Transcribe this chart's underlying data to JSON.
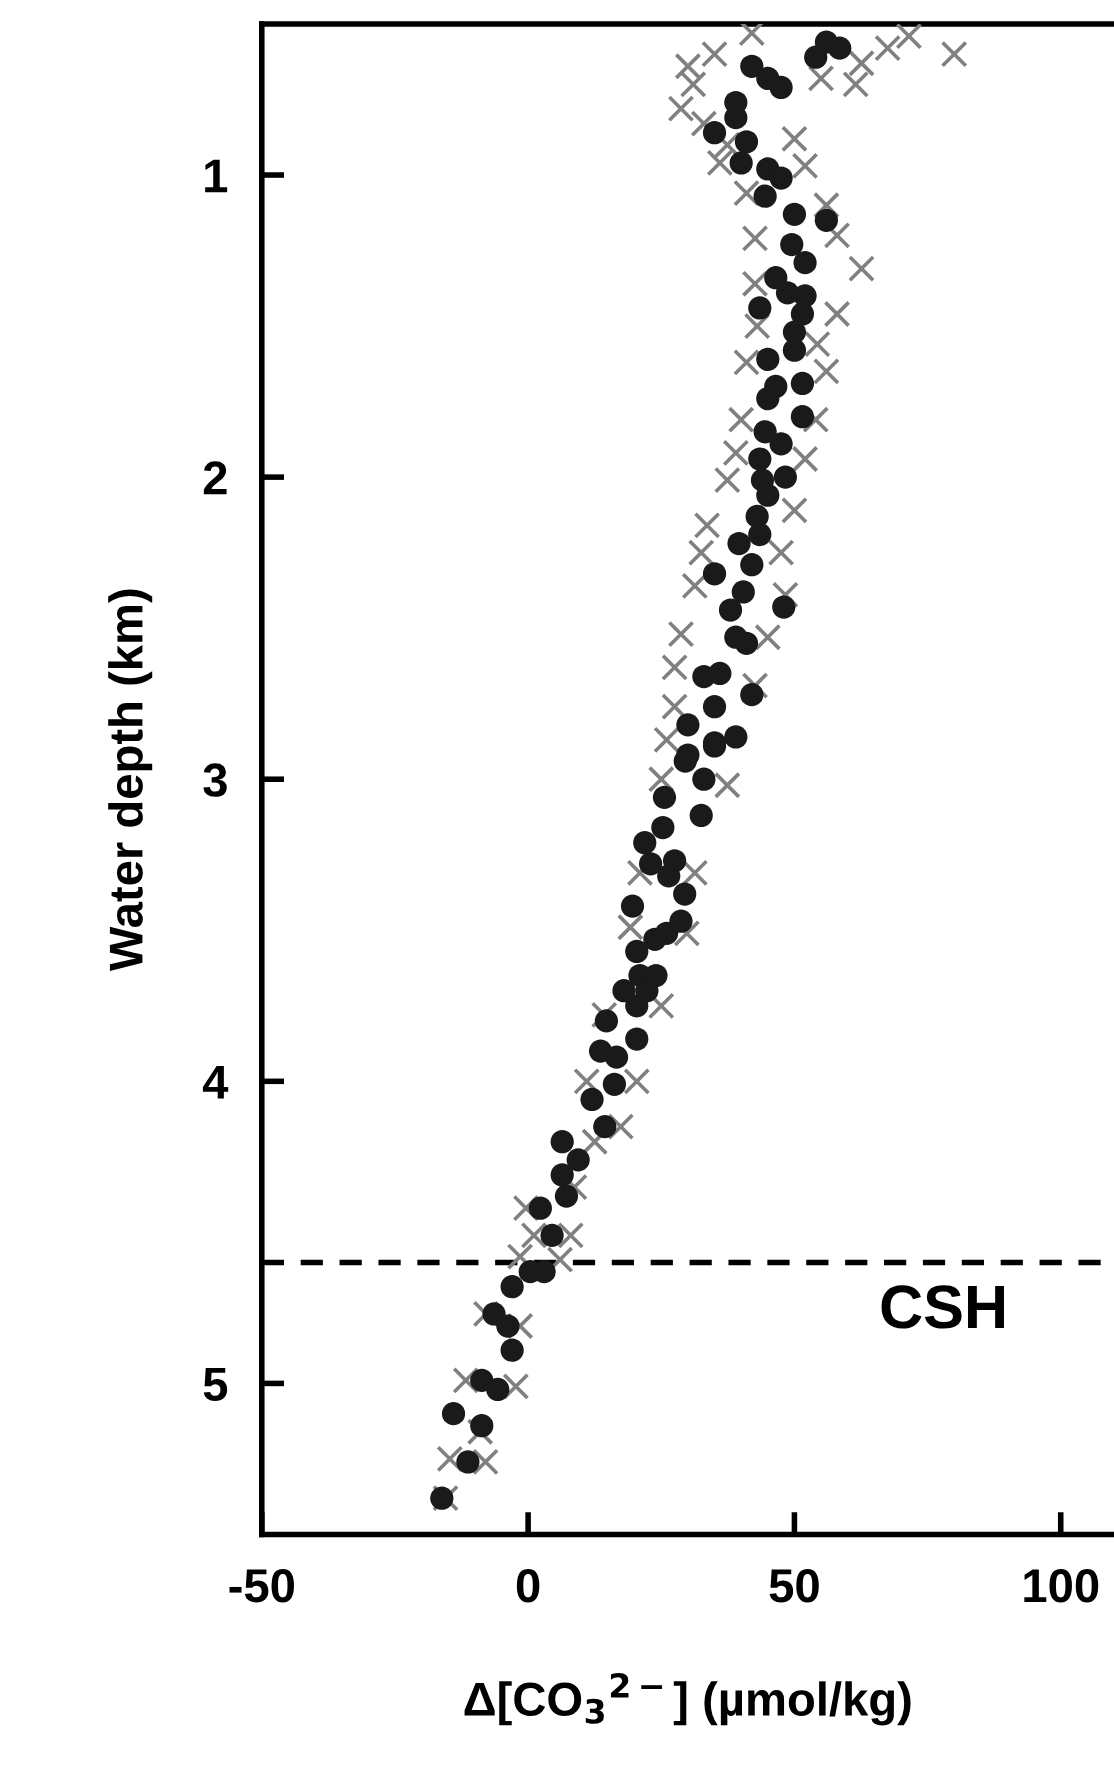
{
  "chart_data": {
    "type": "scatter",
    "xlabel": "Δ[CO$_{3}$$^{2−}$] (µmol/kg)",
    "ylabel": "Water depth (km)",
    "xlim": [
      -50,
      110
    ],
    "xticks": [
      -50,
      0,
      50,
      100
    ],
    "ylim": [
      5.5,
      0.5
    ],
    "yticks": [
      1,
      2,
      3,
      4,
      5
    ],
    "grid": false,
    "ref_lines": [
      {
        "axis": "y",
        "value": 4.6,
        "label": "CSH",
        "color": "#000000",
        "line_style": "dashed"
      }
    ],
    "series": [
      {
        "color": "#808080",
        "marker": "cross",
        "x": [
          80,
          71.5,
          67.5,
          62.6,
          61.5,
          55,
          42,
          35,
          30,
          31,
          28.7,
          33,
          37.4,
          36,
          50,
          52,
          41,
          56,
          58,
          62.6,
          42.6,
          42.6,
          58,
          43,
          54.3,
          41,
          56,
          40,
          54,
          39,
          52,
          37.4,
          50,
          33.6,
          47.5,
          32.5,
          31.3,
          48.3,
          28.7,
          45,
          27.5,
          42.6,
          27.5,
          26,
          25,
          37.4,
          31.3,
          21,
          29.8,
          19.2,
          25,
          14.3,
          20.4,
          11,
          17.4,
          12.5,
          8.7,
          -0.4,
          8,
          1.1,
          6,
          -1.5,
          -7.9,
          -1.5,
          -11.7,
          -2.3,
          -9,
          -14.7,
          -8,
          -15.5
        ],
        "values": [
          0.6,
          0.54,
          0.58,
          0.63,
          0.7,
          0.68,
          0.53,
          0.6,
          0.64,
          0.7,
          0.78,
          0.83,
          0.9,
          0.96,
          0.88,
          0.97,
          1.06,
          1.1,
          1.2,
          1.31,
          1.21,
          1.36,
          1.46,
          1.5,
          1.56,
          1.62,
          1.65,
          1.81,
          1.81,
          1.92,
          1.94,
          2.01,
          2.11,
          2.16,
          2.25,
          2.25,
          2.36,
          2.39,
          2.52,
          2.53,
          2.63,
          2.69,
          2.76,
          2.87,
          3.0,
          3.02,
          3.31,
          3.31,
          3.51,
          3.49,
          3.75,
          3.78,
          4.0,
          4.0,
          4.15,
          4.2,
          4.35,
          4.42,
          4.51,
          4.51,
          4.59,
          4.58,
          4.77,
          4.81,
          4.99,
          5.01,
          5.16,
          5.25,
          5.26,
          5.38
        ]
      },
      {
        "color": "#1a1a1a",
        "marker": "circle",
        "x": [
          56,
          58.5,
          54,
          42,
          45,
          47.5,
          39,
          39,
          35,
          41,
          40,
          45,
          47.5,
          44.5,
          50,
          56,
          49.5,
          52,
          46.5,
          48.7,
          52,
          43.5,
          51.5,
          50,
          50,
          45,
          51.5,
          46.5,
          45,
          51.5,
          44.5,
          47.5,
          43.5,
          48.3,
          44,
          45,
          43,
          43.5,
          39.6,
          42,
          35,
          40.4,
          48,
          38,
          39,
          41,
          33,
          36,
          42,
          35,
          30,
          35,
          39,
          30,
          35,
          29.5,
          33,
          32.5,
          25.6,
          25.3,
          21.9,
          23,
          27.5,
          26.4,
          29.4,
          19.6,
          28.7,
          26,
          23.8,
          20.4,
          21,
          24,
          22.3,
          18,
          20.4,
          14.7,
          20.4,
          13.6,
          16.6,
          16.2,
          12,
          14.4,
          6.4,
          9.4,
          6.4,
          7.2,
          2.3,
          4.5,
          0.4,
          3,
          -3,
          -6.4,
          -3.8,
          -3,
          -8.7,
          -5.7,
          -14,
          -8.7,
          -11.3,
          -16.2
        ],
        "values": [
          0.56,
          0.58,
          0.61,
          0.64,
          0.68,
          0.71,
          0.76,
          0.81,
          0.86,
          0.89,
          0.96,
          0.98,
          1.01,
          1.07,
          1.13,
          1.15,
          1.23,
          1.29,
          1.34,
          1.39,
          1.4,
          1.44,
          1.46,
          1.52,
          1.58,
          1.61,
          1.69,
          1.7,
          1.74,
          1.8,
          1.85,
          1.89,
          1.94,
          2.0,
          2.01,
          2.06,
          2.13,
          2.19,
          2.22,
          2.29,
          2.32,
          2.38,
          2.43,
          2.44,
          2.53,
          2.55,
          2.66,
          2.65,
          2.72,
          2.76,
          2.82,
          2.89,
          2.86,
          2.92,
          2.88,
          2.94,
          3.0,
          3.12,
          3.06,
          3.16,
          3.21,
          3.28,
          3.27,
          3.32,
          3.38,
          3.42,
          3.47,
          3.51,
          3.53,
          3.57,
          3.65,
          3.65,
          3.7,
          3.7,
          3.75,
          3.8,
          3.86,
          3.9,
          3.92,
          4.01,
          4.06,
          4.15,
          4.2,
          4.26,
          4.31,
          4.38,
          4.42,
          4.51,
          4.63,
          4.63,
          4.68,
          4.77,
          4.81,
          4.89,
          4.99,
          5.02,
          5.1,
          5.14,
          5.26,
          5.38
        ]
      }
    ]
  }
}
